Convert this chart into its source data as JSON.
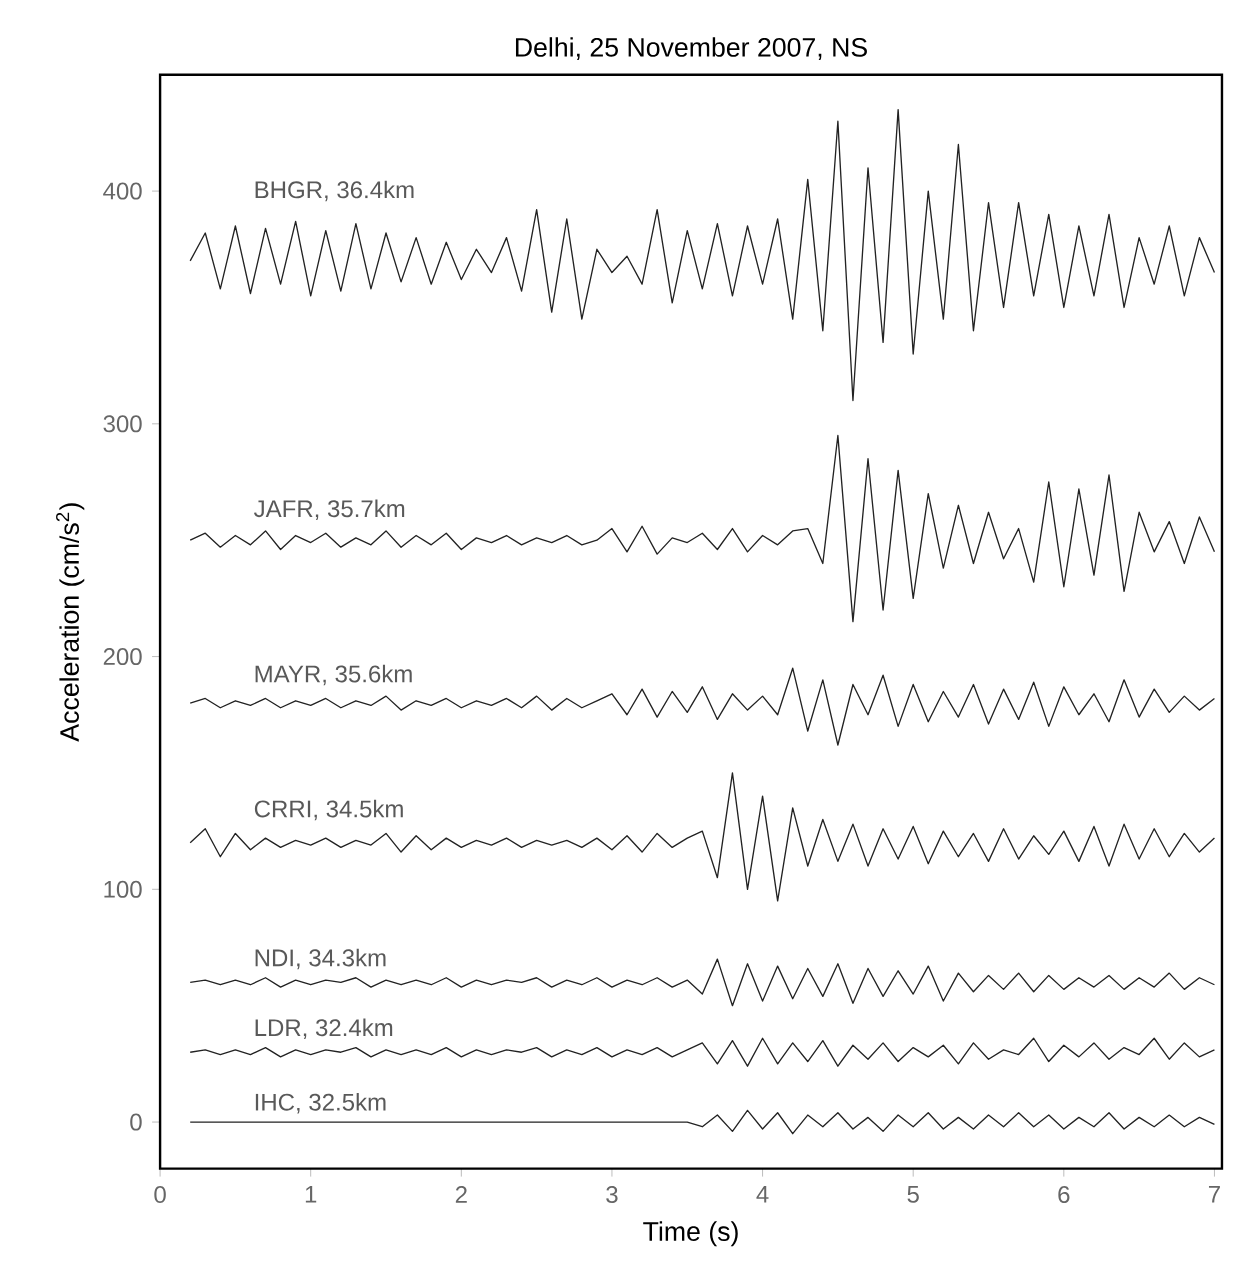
{
  "chart_data": {
    "type": "line",
    "title": "Delhi, 25 November 2007, NS",
    "xlabel": "Time (s)",
    "ylabel": "Acceleration (cm/s$^{2}$)",
    "x": [
      0.2,
      0.3,
      0.4,
      0.5,
      0.6,
      0.7,
      0.8,
      0.9,
      1.0,
      1.1,
      1.2,
      1.3,
      1.4,
      1.5,
      1.6,
      1.7,
      1.8,
      1.9,
      2.0,
      2.1,
      2.2,
      2.3,
      2.4,
      2.5,
      2.6,
      2.7,
      2.8,
      2.9,
      3.0,
      3.1,
      3.2,
      3.3,
      3.4,
      3.5,
      3.6,
      3.7,
      3.8,
      3.9,
      4.0,
      4.1,
      4.2,
      4.3,
      4.4,
      4.5,
      4.6,
      4.7,
      4.8,
      4.9,
      5.0,
      5.1,
      5.2,
      5.3,
      5.4,
      5.5,
      5.6,
      5.7,
      5.8,
      5.9,
      6.0,
      6.1,
      6.2,
      6.3,
      6.4,
      6.5,
      6.6,
      6.7,
      6.8,
      6.9,
      7.0
    ],
    "series": [
      {
        "name": "BHGR,  36.4km",
        "color": "#222222",
        "values": [
          370,
          382,
          358,
          385,
          356,
          384,
          360,
          387,
          355,
          383,
          357,
          386,
          358,
          382,
          361,
          380,
          360,
          378,
          362,
          375,
          365,
          380,
          357,
          392,
          348,
          388,
          345,
          375,
          365,
          372,
          360,
          392,
          352,
          383,
          358,
          386,
          355,
          385,
          360,
          388,
          345,
          405,
          340,
          430,
          310,
          410,
          335,
          435,
          330,
          400,
          345,
          420,
          340,
          395,
          350,
          395,
          355,
          390,
          350,
          385,
          355,
          390,
          350,
          380,
          360,
          385,
          355,
          380,
          365
        ]
      },
      {
        "name": "JAFR,  35.7km",
        "color": "#222222",
        "values": [
          250,
          253,
          247,
          252,
          248,
          254,
          246,
          252,
          249,
          253,
          247,
          251,
          248,
          254,
          247,
          252,
          248,
          253,
          246,
          251,
          249,
          252,
          248,
          251,
          249,
          252,
          248,
          250,
          255,
          245,
          256,
          244,
          251,
          249,
          253,
          246,
          255,
          245,
          252,
          248,
          254,
          255,
          240,
          295,
          215,
          285,
          220,
          280,
          225,
          270,
          238,
          265,
          240,
          262,
          242,
          255,
          232,
          275,
          230,
          272,
          235,
          278,
          228,
          262,
          245,
          258,
          240,
          260,
          245
        ]
      },
      {
        "name": "MAYR,  35.6km",
        "color": "#222222",
        "values": [
          180,
          182,
          178,
          181,
          179,
          182,
          178,
          181,
          179,
          182,
          178,
          181,
          179,
          183,
          177,
          181,
          179,
          182,
          178,
          181,
          179,
          182,
          178,
          183,
          177,
          182,
          178,
          181,
          184,
          175,
          186,
          174,
          185,
          176,
          187,
          173,
          184,
          177,
          183,
          175,
          195,
          168,
          190,
          162,
          188,
          175,
          192,
          170,
          188,
          172,
          185,
          174,
          188,
          171,
          186,
          173,
          189,
          170,
          187,
          175,
          184,
          172,
          190,
          174,
          186,
          176,
          183,
          177,
          182
        ]
      },
      {
        "name": "CRRI,  34.5km",
        "color": "#222222",
        "values": [
          120,
          126,
          114,
          124,
          117,
          122,
          118,
          121,
          119,
          122,
          118,
          121,
          119,
          124,
          116,
          123,
          117,
          122,
          118,
          121,
          119,
          122,
          118,
          121,
          119,
          121,
          118,
          122,
          117,
          123,
          116,
          124,
          118,
          122,
          125,
          105,
          150,
          100,
          140,
          95,
          135,
          110,
          130,
          112,
          128,
          110,
          126,
          113,
          127,
          111,
          125,
          114,
          124,
          112,
          126,
          113,
          123,
          115,
          125,
          112,
          127,
          110,
          128,
          113,
          126,
          114,
          124,
          116,
          122
        ]
      },
      {
        "name": "NDI,  34.3km",
        "color": "#222222",
        "values": [
          60,
          61,
          59,
          61,
          59,
          62,
          58,
          61,
          59,
          61,
          60,
          62,
          58,
          61,
          59,
          61,
          59,
          62,
          58,
          61,
          59,
          61,
          60,
          62,
          58,
          61,
          59,
          62,
          58,
          61,
          59,
          62,
          58,
          61,
          55,
          70,
          50,
          68,
          52,
          67,
          53,
          66,
          54,
          68,
          51,
          66,
          54,
          65,
          55,
          67,
          52,
          64,
          56,
          63,
          57,
          64,
          56,
          63,
          57,
          62,
          58,
          63,
          57,
          62,
          58,
          64,
          57,
          62,
          59
        ]
      },
      {
        "name": "LDR,  32.4km",
        "color": "#222222",
        "values": [
          30,
          31,
          29,
          31,
          29,
          32,
          28,
          31,
          29,
          31,
          30,
          32,
          28,
          31,
          29,
          31,
          29,
          32,
          28,
          31,
          29,
          31,
          30,
          32,
          28,
          31,
          29,
          32,
          28,
          31,
          29,
          32,
          28,
          31,
          34,
          25,
          35,
          24,
          36,
          25,
          34,
          26,
          35,
          24,
          33,
          27,
          34,
          26,
          32,
          28,
          33,
          25,
          34,
          27,
          31,
          29,
          36,
          26,
          33,
          28,
          34,
          27,
          32,
          29,
          36,
          27,
          34,
          28,
          31
        ]
      },
      {
        "name": "IHC,  32.5km",
        "color": "#222222",
        "values": [
          0,
          0,
          0,
          0,
          0,
          0,
          0,
          0,
          0,
          0,
          0,
          0,
          0,
          0,
          0,
          0,
          0,
          0,
          0,
          0,
          0,
          0,
          0,
          0,
          0,
          0,
          0,
          0,
          0,
          0,
          0,
          0,
          0,
          0,
          -2,
          3,
          -4,
          5,
          -3,
          4,
          -5,
          3,
          -2,
          4,
          -3,
          2,
          -4,
          3,
          -2,
          4,
          -3,
          2,
          -3,
          3,
          -2,
          4,
          -2,
          3,
          -3,
          2,
          -2,
          4,
          -3,
          2,
          -2,
          3,
          -2,
          2,
          -1
        ]
      }
    ],
    "xlim": [
      0,
      7.05
    ],
    "ylim": [
      -20,
      450
    ],
    "xticks": [
      0,
      1,
      2,
      3,
      4,
      5,
      6,
      7
    ],
    "yticks": [
      0,
      100,
      200,
      300,
      400
    ],
    "legend": false,
    "grid": false,
    "marker": "none",
    "line_style": "solid"
  }
}
